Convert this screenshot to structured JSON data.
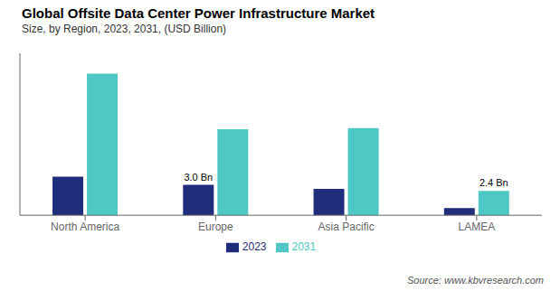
{
  "chart_data": {
    "type": "bar",
    "title": "Global Offsite Data Center Power Infrastructure Market",
    "subtitle": "Size, by Region, 2023, 2031, (USD Billion)",
    "source": "Source: www.kbvresearch.com",
    "categories": [
      "North America",
      "Europe",
      "Asia Pacific",
      "LAMEA"
    ],
    "series": [
      {
        "name": "2023",
        "color": "#1f2d7b",
        "values": [
          3.8,
          3.0,
          2.6,
          0.7
        ]
      },
      {
        "name": "2031",
        "color": "#4dc8c4",
        "values": [
          14.0,
          8.5,
          8.6,
          2.4
        ]
      }
    ],
    "annotations": [
      {
        "series": "2023",
        "category": "Europe",
        "text": "3.0 Bn"
      },
      {
        "series": "2031",
        "category": "LAMEA",
        "text": "2.4 Bn"
      }
    ],
    "ylim": [
      0,
      16
    ],
    "tick_labels": "x",
    "grid": false,
    "legend": "bottom"
  }
}
